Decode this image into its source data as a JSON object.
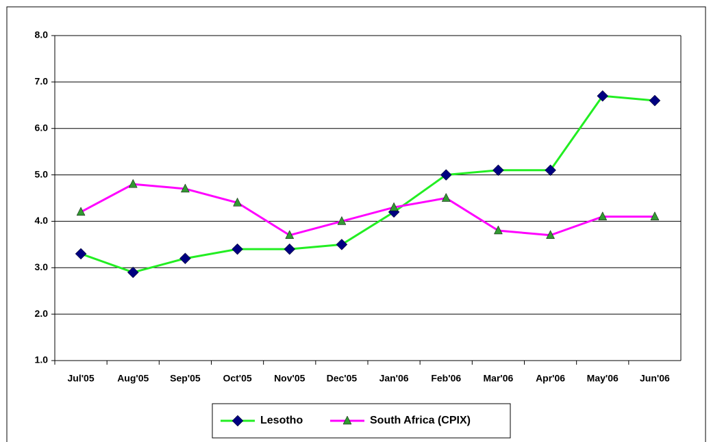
{
  "chart_data": {
    "type": "line",
    "categories": [
      "Jul'05",
      "Aug'05",
      "Sep'05",
      "Oct'05",
      "Nov'05",
      "Dec'05",
      "Jan'06",
      "Feb'06",
      "Mar'06",
      "Apr'06",
      "May'06",
      "Jun'06"
    ],
    "series": [
      {
        "name": "Lesotho",
        "color": "#22ee22",
        "marker": "diamond",
        "marker_color": "#000080",
        "values": [
          3.3,
          2.9,
          3.2,
          3.4,
          3.4,
          3.5,
          4.2,
          5.0,
          5.1,
          5.1,
          6.7,
          6.6
        ]
      },
      {
        "name": "South Africa (CPIX)",
        "color": "#ff00ff",
        "marker": "triangle",
        "marker_color": "#339933",
        "values": [
          4.2,
          4.8,
          4.7,
          4.4,
          3.7,
          4.0,
          4.3,
          4.5,
          3.8,
          3.7,
          4.1,
          4.1
        ]
      }
    ],
    "ylim": [
      1,
      8
    ],
    "yticks": [
      {
        "value": 1,
        "label": "1.0"
      },
      {
        "value": 2,
        "label": "2.0"
      },
      {
        "value": 3,
        "label": "3.0"
      },
      {
        "value": 4,
        "label": "4.0"
      },
      {
        "value": 5,
        "label": "5.0"
      },
      {
        "value": 6,
        "label": "6.0"
      },
      {
        "value": 7,
        "label": "7.0"
      },
      {
        "value": 8,
        "label": "8.0"
      }
    ],
    "grid": true,
    "legend": "bottom"
  }
}
